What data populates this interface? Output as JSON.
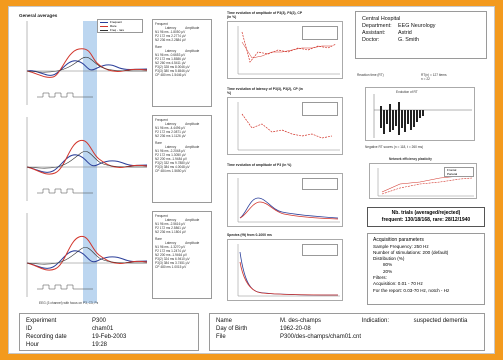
{
  "general": {
    "title": "General averages",
    "legend": [
      "Frequent",
      "Rare",
      "Freq - rare"
    ]
  },
  "tables": [
    {
      "frequent": {
        "title": "Frequent",
        "head": [
          "Latency",
          "Amplitude"
        ],
        "rows": [
          [
            "N1",
            "96 ms",
            "-1.8050 µV"
          ],
          [
            "P2",
            "172 ms",
            "2.2774 µV"
          ],
          [
            "N2",
            "236 ms",
            "2.2884 µV"
          ]
        ]
      },
      "rare": {
        "title": "Rare",
        "head": [
          "Latency",
          "Amplitude"
        ],
        "rows": [
          [
            "N1",
            "96 ms",
            "-0.6653 µV"
          ],
          [
            "P2",
            "172 ms",
            "1.8586 µV"
          ],
          [
            "N2",
            "260 ms",
            "4.5411 µV"
          ],
          [
            "P3(2)",
            "328 ms",
            "8.0046 µV"
          ],
          [
            "P3(3)",
            "380 ms",
            "5.6546 µV"
          ],
          [
            "CP",
            "480 ms",
            "1.5446 µV"
          ]
        ]
      }
    },
    {
      "frequent": {
        "title": "Frequent",
        "head": [
          "Latency",
          "Amplitude"
        ],
        "rows": [
          [
            "N1",
            "96 ms",
            "-4.4496 µV"
          ],
          [
            "P2",
            "172 ms",
            "2.0871 µV"
          ],
          [
            "N2",
            "236 ms",
            "1.1126 µV"
          ]
        ]
      },
      "rare": {
        "title": "Rare",
        "head": [
          "Latency",
          "Amplitude"
        ],
        "rows": [
          [
            "N1",
            "96 ms",
            "-2.2048 µV"
          ],
          [
            "P2",
            "172 ms",
            "1.3050 µV"
          ],
          [
            "N2",
            "200 ms",
            "-1.9484 µV"
          ],
          [
            "P3(2)",
            "332 ms",
            "9.7880 µV"
          ],
          [
            "P3(3)",
            "384 ms",
            "4.0048 µV"
          ],
          [
            "CP",
            "484 ms",
            "1.5650 µV"
          ]
        ]
      }
    },
    {
      "frequent": {
        "title": "Frequent",
        "head": [
          "Latency",
          "Amplitude"
        ],
        "rows": [
          [
            "N1",
            "96 ms",
            "-2.5616 µV"
          ],
          [
            "P2",
            "172 ms",
            "2.5861 µV"
          ],
          [
            "N2",
            "236 ms",
            "1.1804 µV"
          ]
        ]
      },
      "rare": {
        "title": "Rare",
        "head": [
          "Latency",
          "Amplitude"
        ],
        "rows": [
          [
            "N1",
            "96 ms",
            "-1.3270 µV"
          ],
          [
            "P2",
            "172 ms",
            "1.2474 µV"
          ],
          [
            "N2",
            "200 ms",
            "-1.9464 µV"
          ],
          [
            "P3(2)",
            "324 ms",
            "6.9410 µV"
          ],
          [
            "P3(3)",
            "384 ms",
            "3.7451 µV"
          ],
          [
            "CP",
            "480 ms",
            "1.0015 µV"
          ]
        ]
      }
    }
  ],
  "eeg_caption": "EEG (3 channel) with focus on P3, C3, Pz",
  "mid_charts": [
    {
      "title": "Time evolution of amplitude of P3(3), P3(2), CP (in %)"
    },
    {
      "title": "Time evolution of latency of P3(3), P3(2), CP (in %)"
    },
    {
      "title": "Time evolution of amplitude of P3 (in %)"
    },
    {
      "title": "Spectra (fft) from 0-1000 ms"
    }
  ],
  "hospital": {
    "name": "Central Hospital",
    "rows": [
      {
        "k": "Department:",
        "v": "EEG Neurology"
      },
      {
        "k": "Assistant:",
        "v": "Astrid"
      },
      {
        "k": "Doctor:",
        "v": "G. Smith"
      }
    ]
  },
  "reaction": {
    "title": "Reaction time (RT)",
    "stats": "RT(n) = 127 items",
    "stats2": "n = 22",
    "inner_title": "Evolution of RT",
    "caption": "Negative RT scores (n = 118, t = 260 ms)"
  },
  "efficiency": {
    "title": "Network efficiency plasticity",
    "legend": [
      "Frontal",
      "Parietal"
    ]
  },
  "trials": {
    "line1": "Nb. trials (averaged/rejected)",
    "line2": "frequent: 130/18/168, rare: 28/12/1940"
  },
  "acquisition": {
    "title": "Acquisition parameters",
    "lines": [
      "Sample Frequency: 250 Hz",
      "Number of stimulations: 200 (default)",
      "Distribution (%)",
      "80%",
      "20%",
      "Filters:",
      "Acquisition: 0.01 - 70 Hz",
      "For the report: 0.03-70 Hz, notch - Hz"
    ]
  },
  "experiment": [
    {
      "k": "Experiment",
      "v": "P300"
    },
    {
      "k": "ID",
      "v": "cham01"
    },
    {
      "k": "Recording date",
      "v": "19-Feb-2003"
    },
    {
      "k": "Hour",
      "v": "19:28"
    }
  ],
  "patient": {
    "name_k": "Name",
    "name_v": "M. des-champs",
    "indication_k": "Indication:",
    "indication_v": "suspected dementia",
    "dob_k": "Day of Birth",
    "dob_v": "1962-20-08",
    "file_k": "File",
    "file_v": "P300/des-champs/cham01.cnt"
  },
  "colors": {
    "frequent": "#2b3f9a",
    "rare": "#d2352b",
    "diff": "#333333",
    "highlight": "#bcd6f0",
    "orange": "#f39a1e"
  }
}
